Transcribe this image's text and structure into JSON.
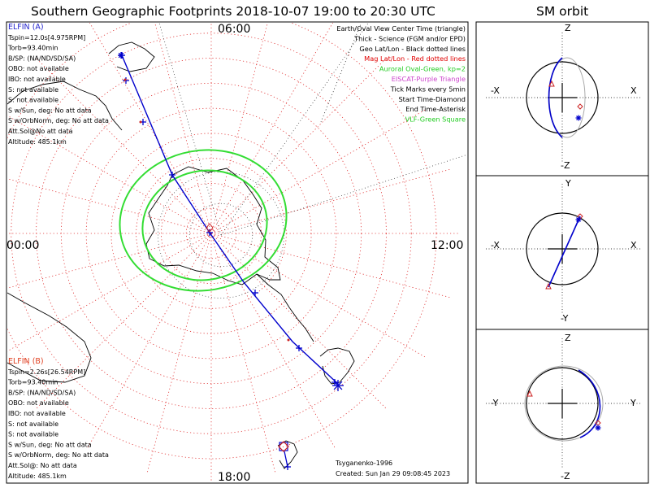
{
  "title": "Southern Geographic Footprints 2018-10-07 19:00 to 20:30 UTC",
  "orbit_title": "SM orbit",
  "polar": {
    "time_labels": {
      "top": "06:00",
      "left": "00:00",
      "right": "12:00",
      "bottom": "18:00"
    }
  },
  "legend": [
    {
      "text": "Earth/Oval View Center Time (triangle)",
      "color": "#000000"
    },
    {
      "text": "Thick - Science (FGM and/or EPD)",
      "color": "#000000"
    },
    {
      "text": "Geo Lat/Lon - Black dotted lines",
      "color": "#000000"
    },
    {
      "text": "Mag Lat/Lon - Red dotted lines",
      "color": "#e00000"
    },
    {
      "text": "Auroral Oval-Green, kp=2",
      "color": "#22cc22"
    },
    {
      "text": "EISCAT-Purple Triangle",
      "color": "#cc44cc"
    },
    {
      "text": "Tick Marks every 5min",
      "color": "#000000"
    },
    {
      "text": "Start Time-Diamond",
      "color": "#000000"
    },
    {
      "text": "End Time-Asterisk",
      "color": "#000000"
    },
    {
      "text": "VLF-Green Square",
      "color": "#22cc22"
    }
  ],
  "elfin_a": {
    "header": "ELFIN (A)",
    "header_color": "#2222cc",
    "lines": [
      "Tspin=12.0s[4.975RPM]",
      "Torb=93.40min",
      "B/SP: (NA/ND/SD/SA)",
      "OBO: not available",
      "IBO: not available",
      "S: not available",
      "S: not available",
      "S w/Sun, deg: No att data",
      "S w/OrbNorm, deg: No att data",
      "Att.Sol@No att data",
      "Altitude: 485.1km"
    ]
  },
  "elfin_b": {
    "header": "ELFIN (B)",
    "header_color": "#e04020",
    "lines": [
      "Tspin=2.26s[26.54RPM]",
      "Torb=93.40min",
      "B/SP: (NA/ND/SD/SA)",
      "OBO: not available",
      "IBO: not available",
      "S: not available",
      "S: not available",
      "S w/Sun, deg: No att data",
      "S w/OrbNorm, deg: No att data",
      "Att.Sol@: No att data",
      "Altitude: 485.1km"
    ]
  },
  "model": "Tsyganenko-1996",
  "created": "Created: Sun Jan 29 09:08:45 2023",
  "colors": {
    "track": "#0000cc",
    "mag_grid": "#e03030",
    "geo_grid": "#000000",
    "oval": "#33dd33",
    "start_diamond": "#cc2222",
    "eiscat": "#cc44cc"
  },
  "chart_data": [
    {
      "type": "line",
      "name": "footprint polar map",
      "axes": {
        "tick_labels": [
          "06:00",
          "00:00",
          "12:00",
          "18:00"
        ]
      },
      "series": [
        {
          "name": "ELFIN (A)",
          "color": "#0000cc",
          "points_rel": [
            [
              -0.745,
              -0.9
            ],
            [
              -0.4,
              -0.33
            ],
            [
              0.65,
              0.78
            ]
          ]
        }
      ]
    },
    {
      "type": "scatter",
      "name": "SM orbit X-Z",
      "axes": {
        "x": [
          "-X",
          "X"
        ],
        "y": [
          "Z",
          "-Z"
        ]
      },
      "series": [
        {
          "name": "orbit",
          "color": "#0000cc"
        }
      ]
    },
    {
      "type": "scatter",
      "name": "SM orbit X-Y",
      "axes": {
        "x": [
          "-X",
          "X"
        ],
        "y": [
          "Y",
          "-Y"
        ]
      },
      "series": [
        {
          "name": "orbit",
          "color": "#0000cc"
        }
      ]
    },
    {
      "type": "scatter",
      "name": "SM orbit Y-Z",
      "axes": {
        "x": [
          "-Y",
          "Y"
        ],
        "y": [
          "Z",
          "-Z"
        ]
      },
      "series": [
        {
          "name": "orbit",
          "color": "#0000cc"
        }
      ]
    }
  ]
}
